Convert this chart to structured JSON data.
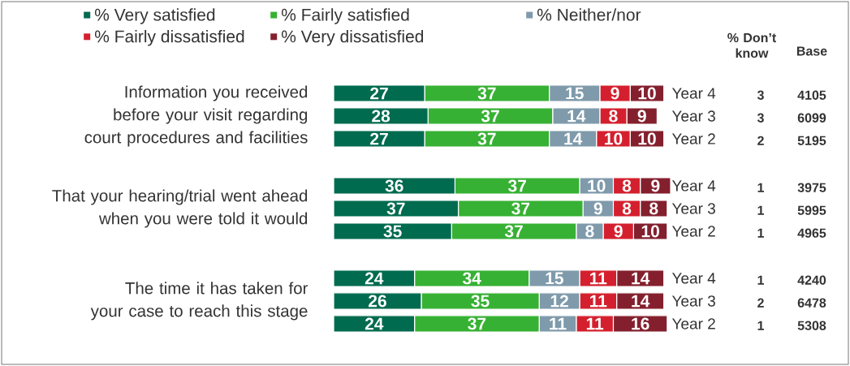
{
  "chart_data": {
    "type": "bar",
    "orientation": "horizontal",
    "stacked": true,
    "data_labels": true,
    "legend": "top",
    "categories": [
      "Year 4",
      "Year 3",
      "Year 2",
      "Year 4",
      "Year 3",
      "Year 2",
      "Year 4",
      "Year 3",
      "Year 2"
    ],
    "series": [
      {
        "name": "% Very satisfied",
        "color": "#006b4f",
        "values": [
          27,
          28,
          27,
          36,
          37,
          35,
          24,
          26,
          24
        ]
      },
      {
        "name": "% Fairly satisfied",
        "color": "#37b134",
        "values": [
          37,
          37,
          37,
          37,
          37,
          37,
          34,
          35,
          37
        ]
      },
      {
        "name": "% Neither/nor",
        "color": "#7f9aab",
        "values": [
          15,
          14,
          14,
          10,
          9,
          8,
          15,
          12,
          11
        ]
      },
      {
        "name": "% Fairly dissatisfied",
        "color": "#d4202e",
        "values": [
          9,
          8,
          10,
          8,
          8,
          9,
          11,
          11,
          11
        ]
      },
      {
        "name": "% Very dissatisfied",
        "color": "#84202e",
        "values": [
          10,
          9,
          10,
          9,
          8,
          10,
          14,
          14,
          16
        ]
      }
    ],
    "annotations": [
      "Information you received before your visit regarding court procedures and facilities",
      "That your hearing/trial went ahead when you were told it would",
      "The time it has taken for your case to reach this stage",
      "% Don’t know",
      "Base",
      "3",
      "3",
      "2",
      "1",
      "1",
      "1",
      "1",
      "2",
      "1",
      "4105",
      "6099",
      "5195",
      "3975",
      "5995",
      "4965",
      "4240",
      "6478",
      "5308"
    ]
  }
}
